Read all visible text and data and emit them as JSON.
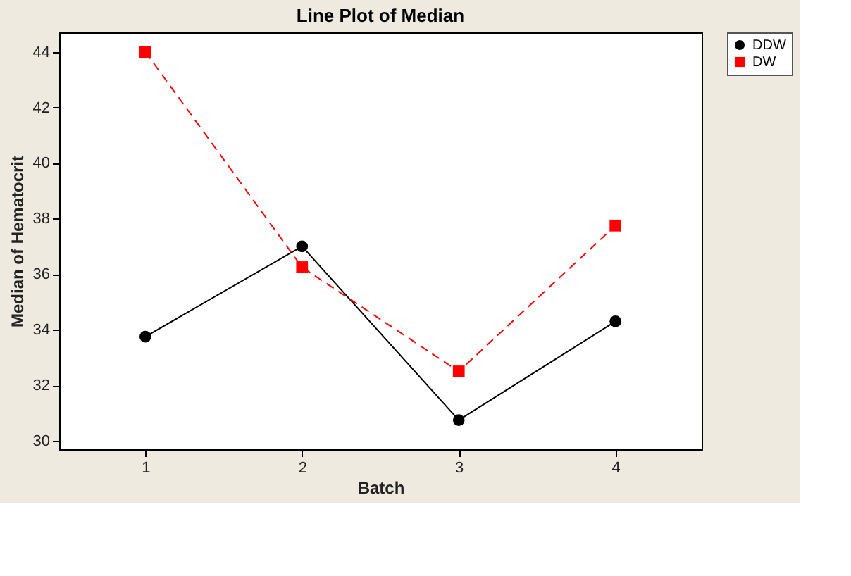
{
  "chart_data": {
    "type": "line",
    "title": "Line Plot of Median",
    "xlabel": "Batch",
    "ylabel": "Median of Hematocrit",
    "categories": [
      "1",
      "2",
      "3",
      "4"
    ],
    "series": [
      {
        "name": "DDW",
        "color": "#000000",
        "marker": "circle",
        "line_style": "solid",
        "values": [
          33.75,
          37,
          30.75,
          34.3
        ]
      },
      {
        "name": "DW",
        "color": "#ff0000",
        "marker": "square",
        "line_style": "dashed",
        "values": [
          44,
          36.25,
          32.5,
          37.75
        ]
      }
    ],
    "ylim": [
      29.7,
      44.7
    ],
    "yticks": [
      30,
      32,
      34,
      36,
      38,
      40,
      42,
      44
    ],
    "grid": false,
    "legend": "top right"
  }
}
